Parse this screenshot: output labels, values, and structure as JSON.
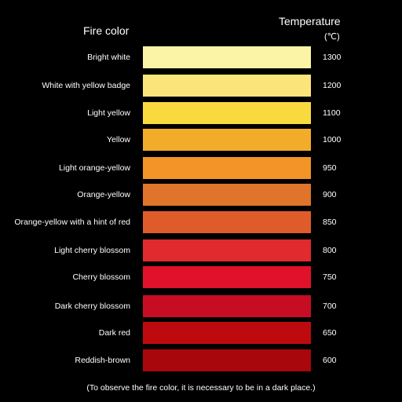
{
  "headers": {
    "fire_color": "Fire color",
    "temperature": "Temperature",
    "unit": "(℃)"
  },
  "rows": [
    {
      "label": "Bright white",
      "temp": "1300",
      "color": "#FBF3A6"
    },
    {
      "label": "White with yellow badge",
      "temp": "1200",
      "color": "#FBE57A"
    },
    {
      "label": "Light yellow",
      "temp": "1100",
      "color": "#F9DA3E"
    },
    {
      "label": "Yellow",
      "temp": "1000",
      "color": "#F3AC2A"
    },
    {
      "label": "Light orange-yellow",
      "temp": "950",
      "color": "#F29427"
    },
    {
      "label": "Orange-yellow",
      "temp": "900",
      "color": "#E1742B"
    },
    {
      "label": "Orange-yellow with a hint of red",
      "temp": "850",
      "color": "#DF5C2A"
    },
    {
      "label": "Light cherry blossom",
      "temp": "800",
      "color": "#E02A2D"
    },
    {
      "label": "Cherry blossom",
      "temp": "750",
      "color": "#E0112B"
    },
    {
      "label": "Dark cherry blossom",
      "temp": "700",
      "color": "#C70D23"
    },
    {
      "label": "Dark red",
      "temp": "650",
      "color": "#BD0A0E"
    },
    {
      "label": "Reddish-brown",
      "temp": "600",
      "color": "#A8080C"
    }
  ],
  "footnote": "(To observe the fire color, it is necessary to be in a dark place.)"
}
